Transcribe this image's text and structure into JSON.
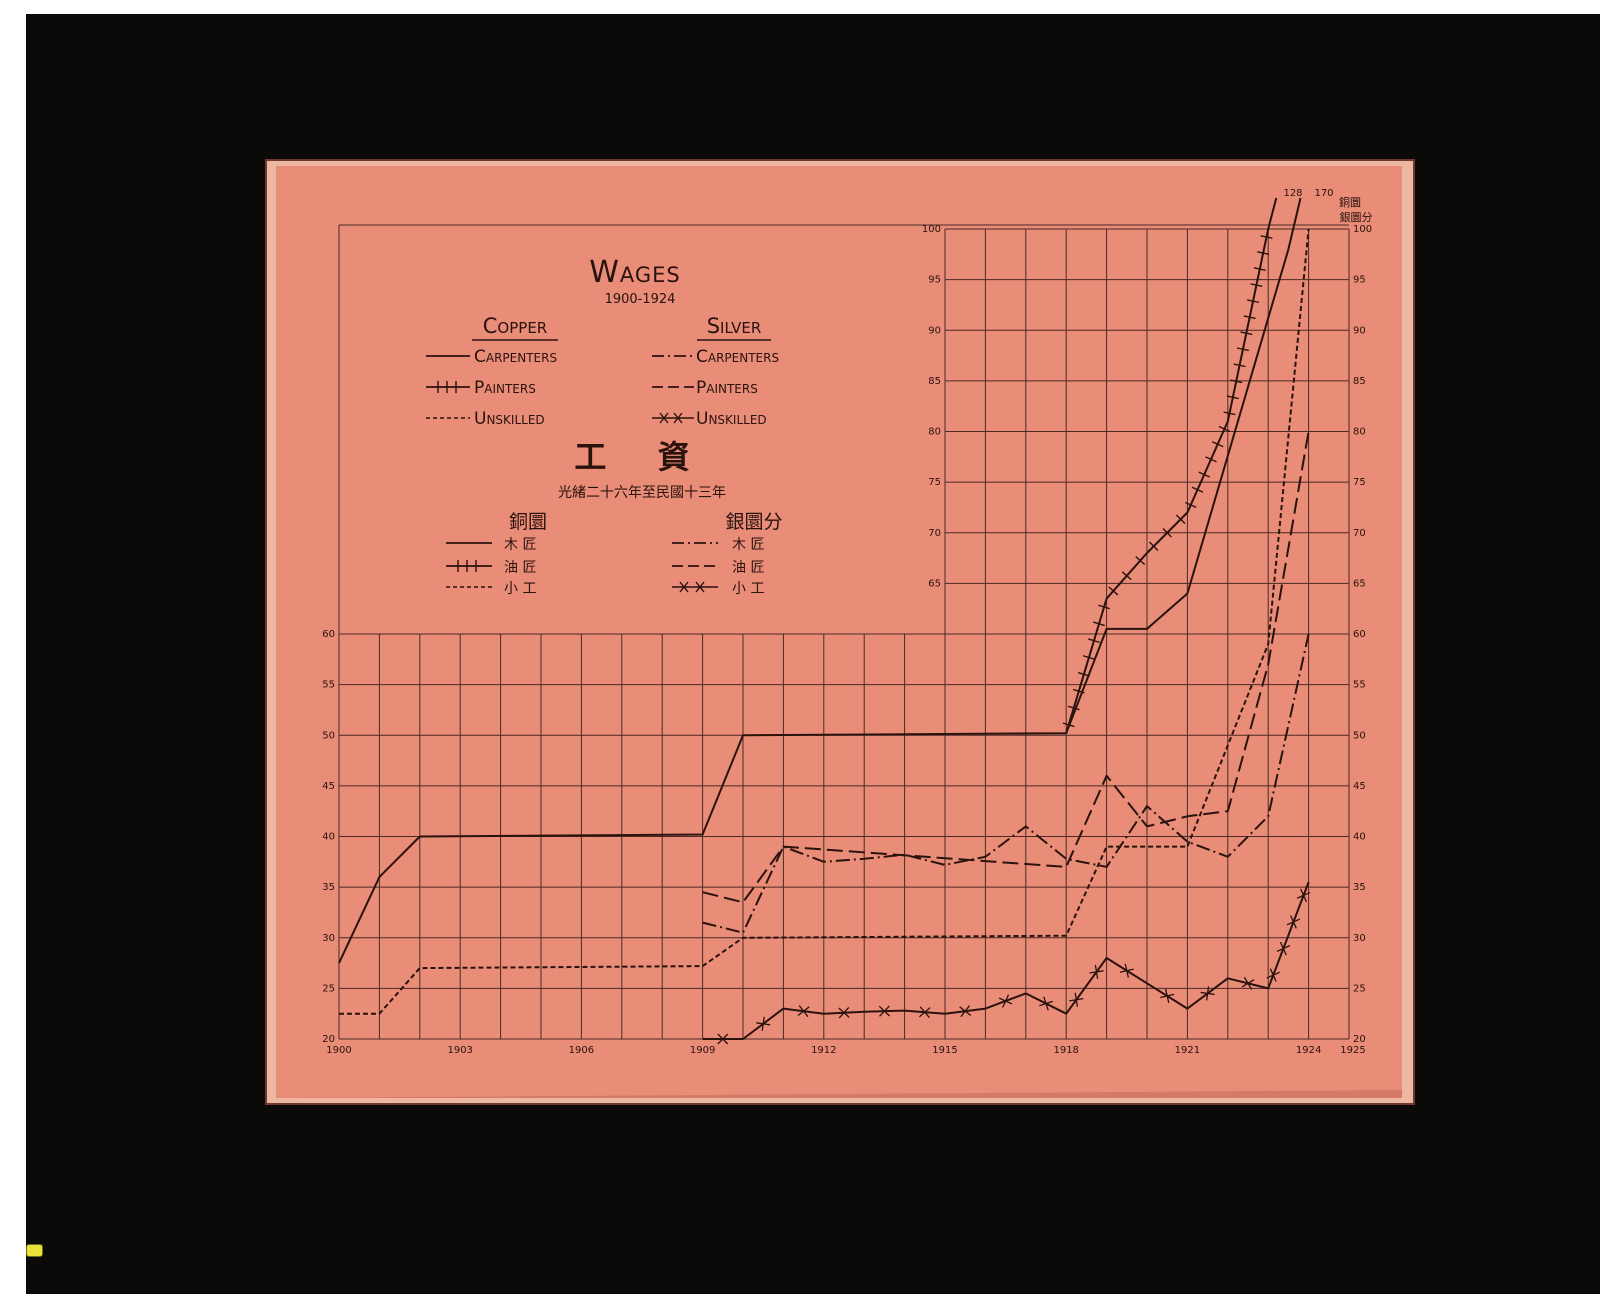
{
  "title": "Wages",
  "subtitle": "1900-1924",
  "chinese_title": "工 資",
  "chinese_subtitle": "光緒二十六年至民國十三年",
  "legend": {
    "copper_heading": "Copper",
    "silver_heading": "Silver",
    "copper_heading_cn": "銅圜",
    "silver_heading_cn": "銀圜分",
    "copper": [
      {
        "label": "Carpenters",
        "label_cn": "木 匠"
      },
      {
        "label": "Painters",
        "label_cn": "油 匠"
      },
      {
        "label": "Unskilled",
        "label_cn": "小 工"
      }
    ],
    "silver": [
      {
        "label": "Carpenters",
        "label_cn": "木 匠"
      },
      {
        "label": "Painters",
        "label_cn": "油 匠"
      },
      {
        "label": "Unskilled",
        "label_cn": "小 工"
      }
    ]
  },
  "annotations": {
    "painters_off_scale": "128",
    "carpenters_off_scale": "170",
    "right_axis_unit_top": "銅圜",
    "right_axis_unit_bottom": "銀圜分"
  },
  "colors": {
    "paper": "#e98d79",
    "ink": "#2a120d",
    "grid": "#4a2a22",
    "frame": "#0c0a09"
  },
  "chart_data": {
    "type": "line",
    "title": "Wages",
    "subtitle": "1900-1924",
    "xlabel": "",
    "ylabel": "",
    "x_tick_labels": [
      "1900",
      "1903",
      "1906",
      "1909",
      "1912",
      "1915",
      "1918",
      "1921",
      "1924",
      "1925"
    ],
    "x_ticks": [
      1900,
      1903,
      1906,
      1909,
      1912,
      1915,
      1918,
      1921,
      1924,
      1925
    ],
    "xlim": [
      1900,
      1925
    ],
    "ylim": [
      20,
      100
    ],
    "y_ticks_lower_left": [
      20,
      25,
      30,
      35,
      40,
      45,
      50,
      55,
      60
    ],
    "y_ticks_upper_middle": [
      65,
      70,
      75,
      80,
      85,
      90,
      95,
      100
    ],
    "y_ticks_right": [
      20,
      25,
      30,
      35,
      40,
      45,
      50,
      55,
      60,
      65,
      70,
      75,
      80,
      85,
      90,
      95,
      100
    ],
    "series": [
      {
        "name": "Copper Carpenters",
        "style": "solid",
        "x": [
          1900,
          1901,
          1902,
          1909,
          1910,
          1918,
          1919,
          1920,
          1921,
          1923.5
        ],
        "y": [
          27.5,
          36,
          40,
          40.2,
          50,
          50.2,
          60.5,
          60.5,
          64,
          98
        ]
      },
      {
        "name": "Copper Painters",
        "style": "solid-ticks",
        "x": [
          1918,
          1919,
          1920,
          1921,
          1922,
          1923
        ],
        "y": [
          50.2,
          63.5,
          68,
          72,
          81,
          100
        ]
      },
      {
        "name": "Copper Unskilled",
        "style": "short-dash",
        "x": [
          1900,
          1901,
          1902,
          1909,
          1910,
          1918,
          1919,
          1920,
          1921,
          1922,
          1923,
          1924
        ],
        "y": [
          22.5,
          22.5,
          27,
          27.2,
          30,
          30.2,
          39,
          39,
          39,
          49,
          59,
          100
        ]
      },
      {
        "name": "Silver Carpenters",
        "style": "dash-dot",
        "x": [
          1909,
          1910,
          1911,
          1912,
          1913,
          1914,
          1915,
          1916,
          1917,
          1918,
          1919,
          1920,
          1921,
          1922,
          1923,
          1924
        ],
        "y": [
          31.5,
          30.5,
          39,
          37.5,
          37.8,
          38.2,
          37.2,
          38,
          41,
          37.8,
          37,
          43,
          39.5,
          38,
          42,
          60
        ]
      },
      {
        "name": "Silver Painters",
        "style": "long-dash",
        "x": [
          1909,
          1910,
          1911,
          1918,
          1919,
          1920,
          1921,
          1922,
          1923,
          1924
        ],
        "y": [
          34.5,
          33.5,
          39,
          37,
          46,
          41,
          42,
          42.5,
          57,
          80
        ]
      },
      {
        "name": "Silver Unskilled",
        "style": "crosses",
        "x": [
          1909,
          1910,
          1911,
          1912,
          1913,
          1914,
          1915,
          1916,
          1917,
          1918,
          1919,
          1920,
          1921,
          1922,
          1923,
          1924
        ],
        "y": [
          20,
          20,
          23,
          22.5,
          22.7,
          22.8,
          22.5,
          23,
          24.5,
          22.5,
          28,
          25.5,
          23,
          26,
          25,
          35.5
        ]
      }
    ]
  }
}
